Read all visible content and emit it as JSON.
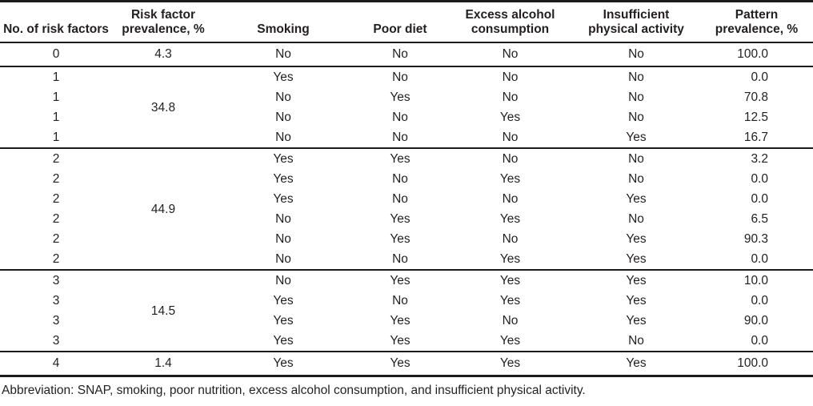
{
  "table": {
    "columns": [
      {
        "label": "No. of risk factors",
        "lines": [
          "No. of risk factors"
        ]
      },
      {
        "label": "Risk factor prevalence, %",
        "lines": [
          "Risk factor",
          "prevalence, %"
        ]
      },
      {
        "label": "Smoking",
        "lines": [
          "Smoking"
        ]
      },
      {
        "label": "Poor diet",
        "lines": [
          "Poor diet"
        ]
      },
      {
        "label": "Excess alcohol consumption",
        "lines": [
          "Excess alcohol",
          "consumption"
        ]
      },
      {
        "label": "Insufficient physical activity",
        "lines": [
          "Insufficient",
          "physical activity"
        ]
      },
      {
        "label": "Pattern prevalence, %",
        "lines": [
          "Pattern",
          "prevalence, %"
        ]
      }
    ],
    "groups": [
      {
        "n": "0",
        "prevalence": "4.3",
        "rows": [
          {
            "smoking": "No",
            "poor_diet": "No",
            "alcohol": "No",
            "activity": "No",
            "pattern": "100.0"
          }
        ]
      },
      {
        "n": "1",
        "prevalence": "34.8",
        "rows": [
          {
            "smoking": "Yes",
            "poor_diet": "No",
            "alcohol": "No",
            "activity": "No",
            "pattern": "0.0"
          },
          {
            "smoking": "No",
            "poor_diet": "Yes",
            "alcohol": "No",
            "activity": "No",
            "pattern": "70.8"
          },
          {
            "smoking": "No",
            "poor_diet": "No",
            "alcohol": "Yes",
            "activity": "No",
            "pattern": "12.5"
          },
          {
            "smoking": "No",
            "poor_diet": "No",
            "alcohol": "No",
            "activity": "Yes",
            "pattern": "16.7"
          }
        ]
      },
      {
        "n": "2",
        "prevalence": "44.9",
        "rows": [
          {
            "smoking": "Yes",
            "poor_diet": "Yes",
            "alcohol": "No",
            "activity": "No",
            "pattern": "3.2"
          },
          {
            "smoking": "Yes",
            "poor_diet": "No",
            "alcohol": "Yes",
            "activity": "No",
            "pattern": "0.0"
          },
          {
            "smoking": "Yes",
            "poor_diet": "No",
            "alcohol": "No",
            "activity": "Yes",
            "pattern": "0.0"
          },
          {
            "smoking": "No",
            "poor_diet": "Yes",
            "alcohol": "Yes",
            "activity": "No",
            "pattern": "6.5"
          },
          {
            "smoking": "No",
            "poor_diet": "Yes",
            "alcohol": "No",
            "activity": "Yes",
            "pattern": "90.3"
          },
          {
            "smoking": "No",
            "poor_diet": "No",
            "alcohol": "Yes",
            "activity": "Yes",
            "pattern": "0.0"
          }
        ]
      },
      {
        "n": "3",
        "prevalence": "14.5",
        "rows": [
          {
            "smoking": "No",
            "poor_diet": "Yes",
            "alcohol": "Yes",
            "activity": "Yes",
            "pattern": "10.0"
          },
          {
            "smoking": "Yes",
            "poor_diet": "No",
            "alcohol": "Yes",
            "activity": "Yes",
            "pattern": "0.0"
          },
          {
            "smoking": "Yes",
            "poor_diet": "Yes",
            "alcohol": "No",
            "activity": "Yes",
            "pattern": "90.0"
          },
          {
            "smoking": "Yes",
            "poor_diet": "Yes",
            "alcohol": "Yes",
            "activity": "No",
            "pattern": "0.0"
          }
        ]
      },
      {
        "n": "4",
        "prevalence": "1.4",
        "rows": [
          {
            "smoking": "Yes",
            "poor_diet": "Yes",
            "alcohol": "Yes",
            "activity": "Yes",
            "pattern": "100.0"
          }
        ]
      }
    ],
    "footnote": "Abbreviation: SNAP, smoking, poor nutrition, excess alcohol consumption, and insufficient physical activity."
  },
  "colors": {
    "text": "#231f20",
    "rule": "#1c1c1c",
    "background": "#ffffff"
  }
}
